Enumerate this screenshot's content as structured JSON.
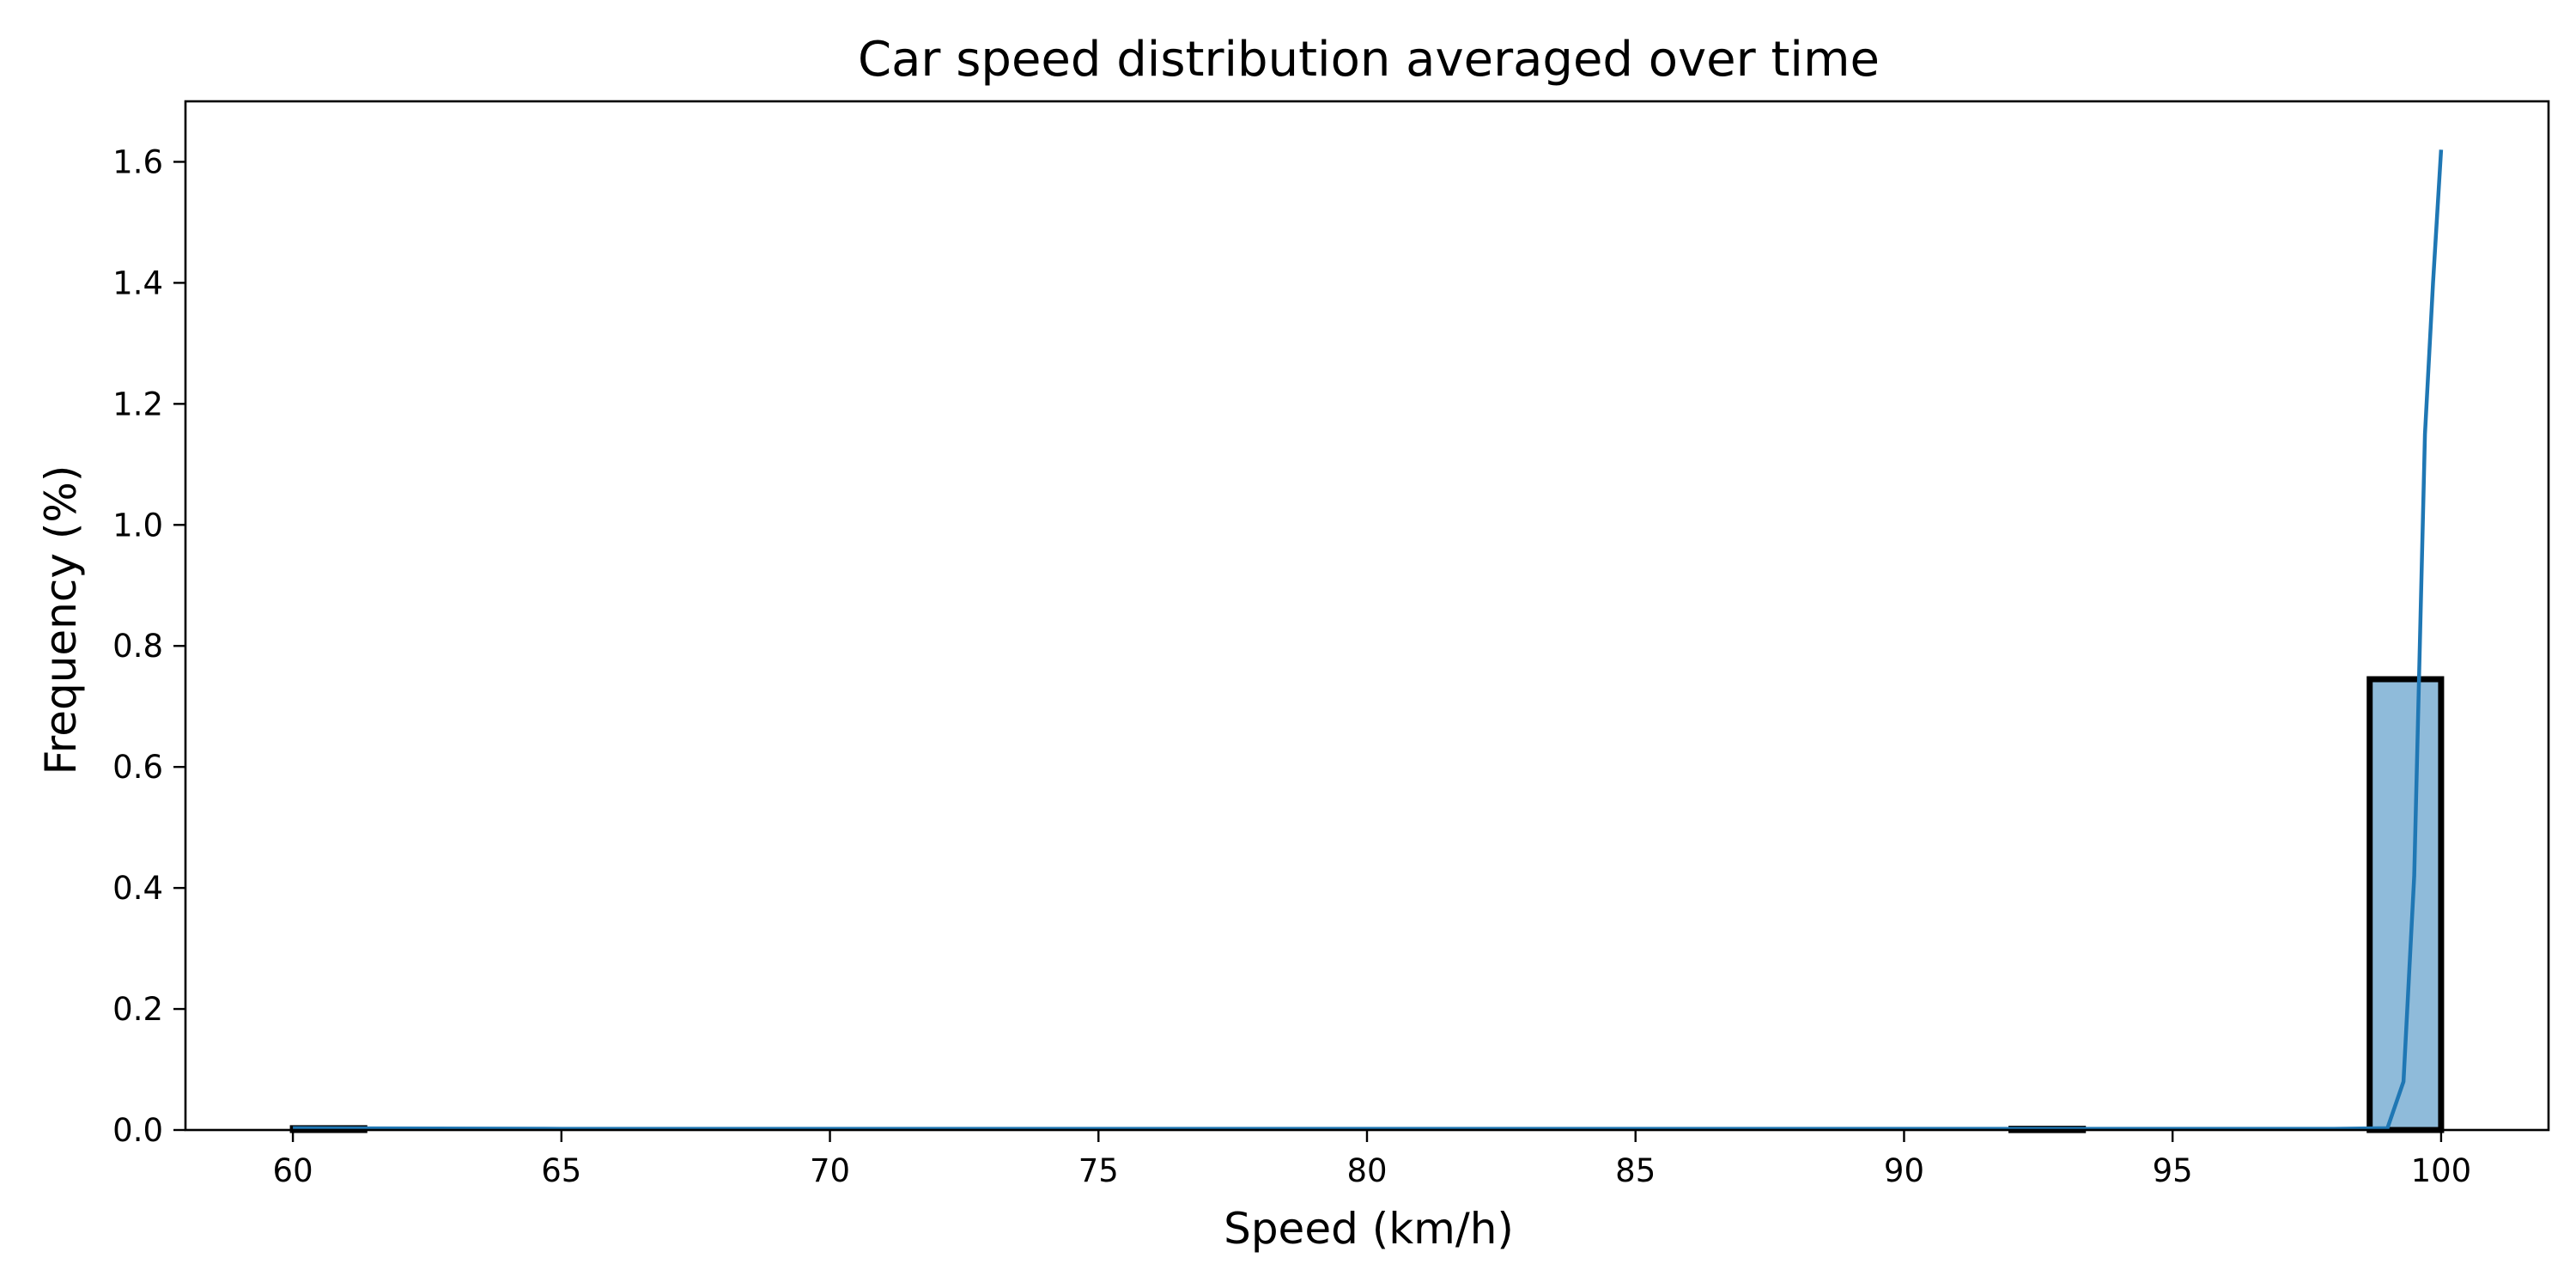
{
  "chart_data": {
    "type": "bar",
    "title": "Car speed distribution averaged over time",
    "xlabel": "Speed (km/h)",
    "ylabel": "Frequency (%)",
    "xlim": [
      58,
      102
    ],
    "ylim": [
      0,
      1.7
    ],
    "grid": false,
    "x_ticks": [
      60,
      65,
      70,
      75,
      80,
      85,
      90,
      95,
      100
    ],
    "x_tick_labels": [
      "60",
      "65",
      "70",
      "75",
      "80",
      "85",
      "90",
      "95",
      "100"
    ],
    "y_ticks": [
      0,
      0.2,
      0.4,
      0.6,
      0.8,
      1.0,
      1.2,
      1.4,
      1.6
    ],
    "y_tick_labels": [
      "0.0",
      "0.2",
      "0.4",
      "0.6",
      "0.8",
      "1.0",
      "1.2",
      "1.4",
      "1.6"
    ],
    "histogram": {
      "bins": [
        {
          "start": 60.0,
          "end": 61.33,
          "value": 0.003
        },
        {
          "start": 92.0,
          "end": 93.33,
          "value": 0.002
        },
        {
          "start": 98.67,
          "end": 100.0,
          "value": 0.745
        }
      ],
      "fill_color": "#8fbbda",
      "edge_color": "#000000"
    },
    "kde_line": {
      "color": "#1f77b4",
      "x": [
        60,
        65,
        70,
        75,
        80,
        85,
        90,
        95,
        98,
        99.0,
        99.3,
        99.5,
        99.7,
        99.85,
        100.0
      ],
      "y": [
        0.003,
        0.002,
        0.002,
        0.002,
        0.002,
        0.002,
        0.002,
        0.002,
        0.002,
        0.003,
        0.08,
        0.42,
        1.15,
        1.4,
        1.62
      ]
    }
  }
}
